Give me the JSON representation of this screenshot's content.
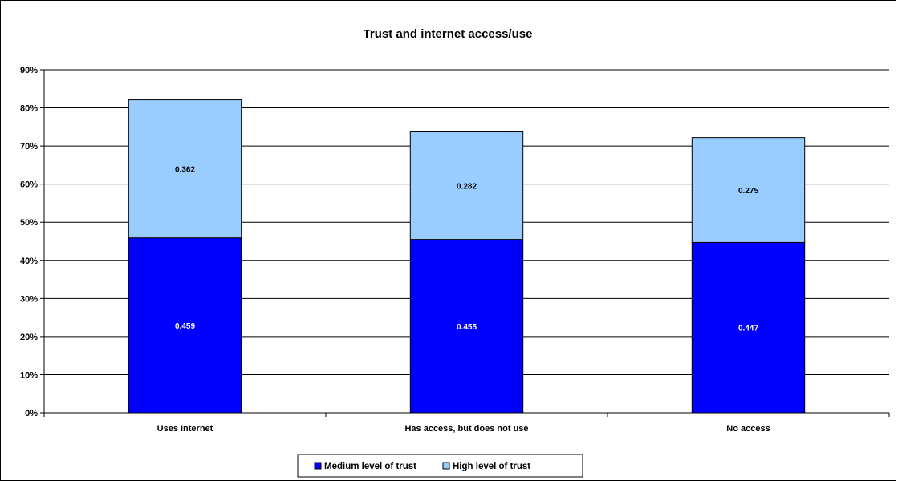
{
  "chart_data": {
    "type": "bar",
    "stacked": true,
    "title": "Trust and internet access/use",
    "xlabel": "",
    "ylabel": "",
    "categories": [
      "Uses Internet",
      "Has access, but does not use",
      "No access"
    ],
    "series": [
      {
        "name": "Medium level of trust",
        "values": [
          0.459,
          0.455,
          0.447
        ],
        "labels": [
          "0.459",
          "0.455",
          "0.447"
        ],
        "color": "#0000FF",
        "label_color": "#FFFFFF"
      },
      {
        "name": "High level of trust",
        "values": [
          0.362,
          0.282,
          0.275
        ],
        "labels": [
          "0.362",
          "0.282",
          "0.275"
        ],
        "color": "#99CCFF",
        "label_color": "#000000"
      }
    ],
    "ylim": [
      0,
      0.9
    ],
    "yticks": [
      0,
      0.1,
      0.2,
      0.3,
      0.4,
      0.5,
      0.6,
      0.7,
      0.8,
      0.9
    ],
    "ytick_labels": [
      "0%",
      "10%",
      "20%",
      "30%",
      "40%",
      "50%",
      "60%",
      "70%",
      "80%",
      "90%"
    ],
    "grid": true,
    "legend_position": "bottom"
  }
}
